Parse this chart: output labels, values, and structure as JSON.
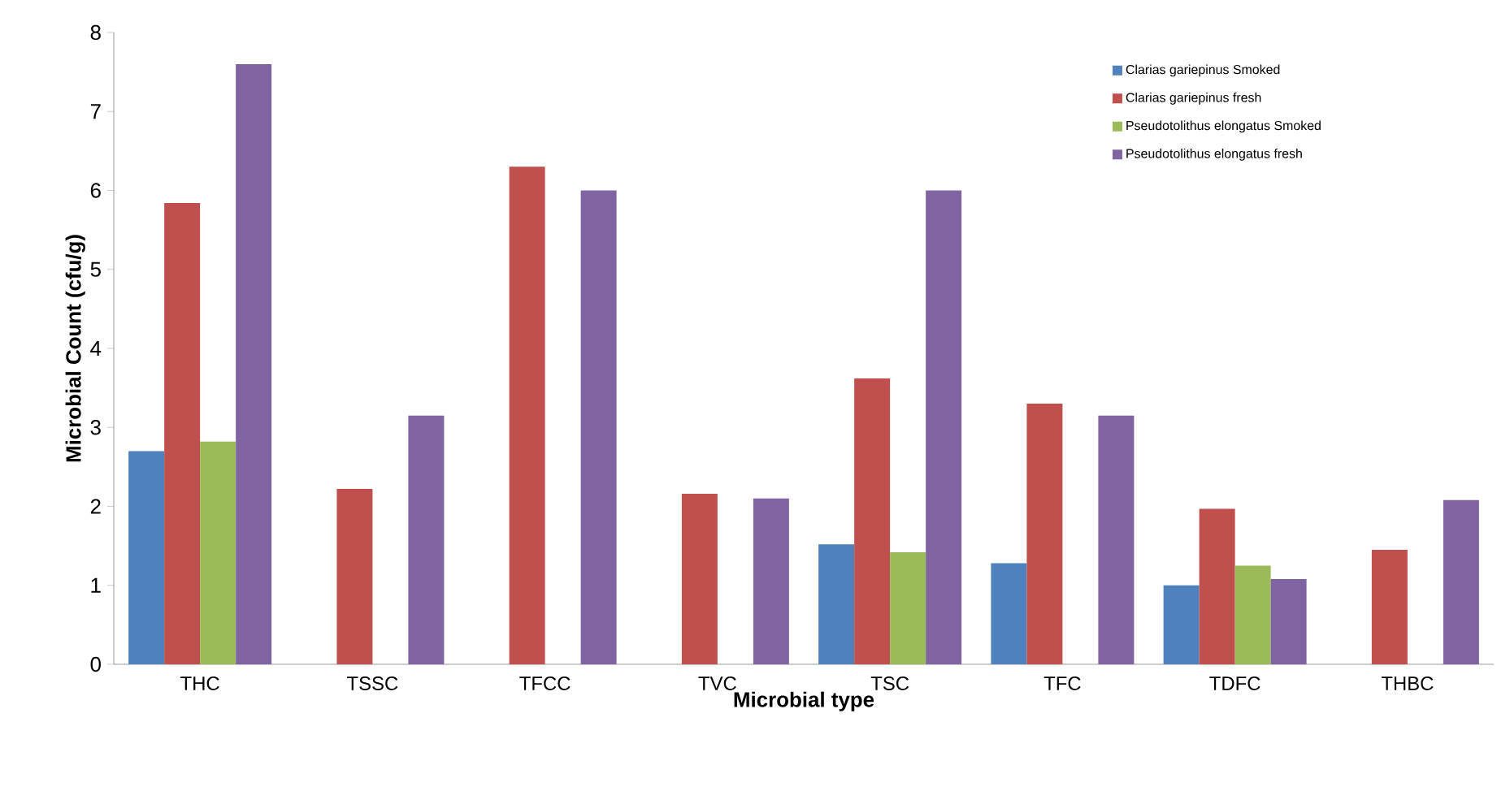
{
  "chart_data": {
    "type": "bar",
    "xlabel": "Microbial type",
    "ylabel": "Microbial Count (cfu/g)",
    "categories": [
      "THC",
      "TSSC",
      "TFCC",
      "TVC",
      "TSC",
      "TFC",
      "TDFC",
      "THBC"
    ],
    "series": [
      {
        "name": "Clarias gariepinus Smoked",
        "color": "#4f81bd",
        "values": [
          2.7,
          null,
          null,
          null,
          1.52,
          1.28,
          1.0,
          null
        ]
      },
      {
        "name": "Clarias gariepinus fresh",
        "color": "#c0504d",
        "values": [
          5.84,
          2.22,
          6.3,
          2.16,
          3.62,
          3.3,
          1.97,
          1.45
        ]
      },
      {
        "name": "Pseudotolithus elongatus Smoked",
        "color": "#9bbb59",
        "values": [
          2.82,
          null,
          null,
          null,
          1.42,
          null,
          1.25,
          null
        ]
      },
      {
        "name": "Pseudotolithus elongatus fresh",
        "color": "#8064a2",
        "values": [
          7.6,
          3.15,
          6.0,
          2.1,
          6.0,
          3.15,
          1.08,
          2.08
        ]
      }
    ],
    "ylim": [
      0,
      8
    ],
    "yticks": [
      0,
      1,
      2,
      3,
      4,
      5,
      6,
      7,
      8
    ],
    "legend": "top right"
  }
}
